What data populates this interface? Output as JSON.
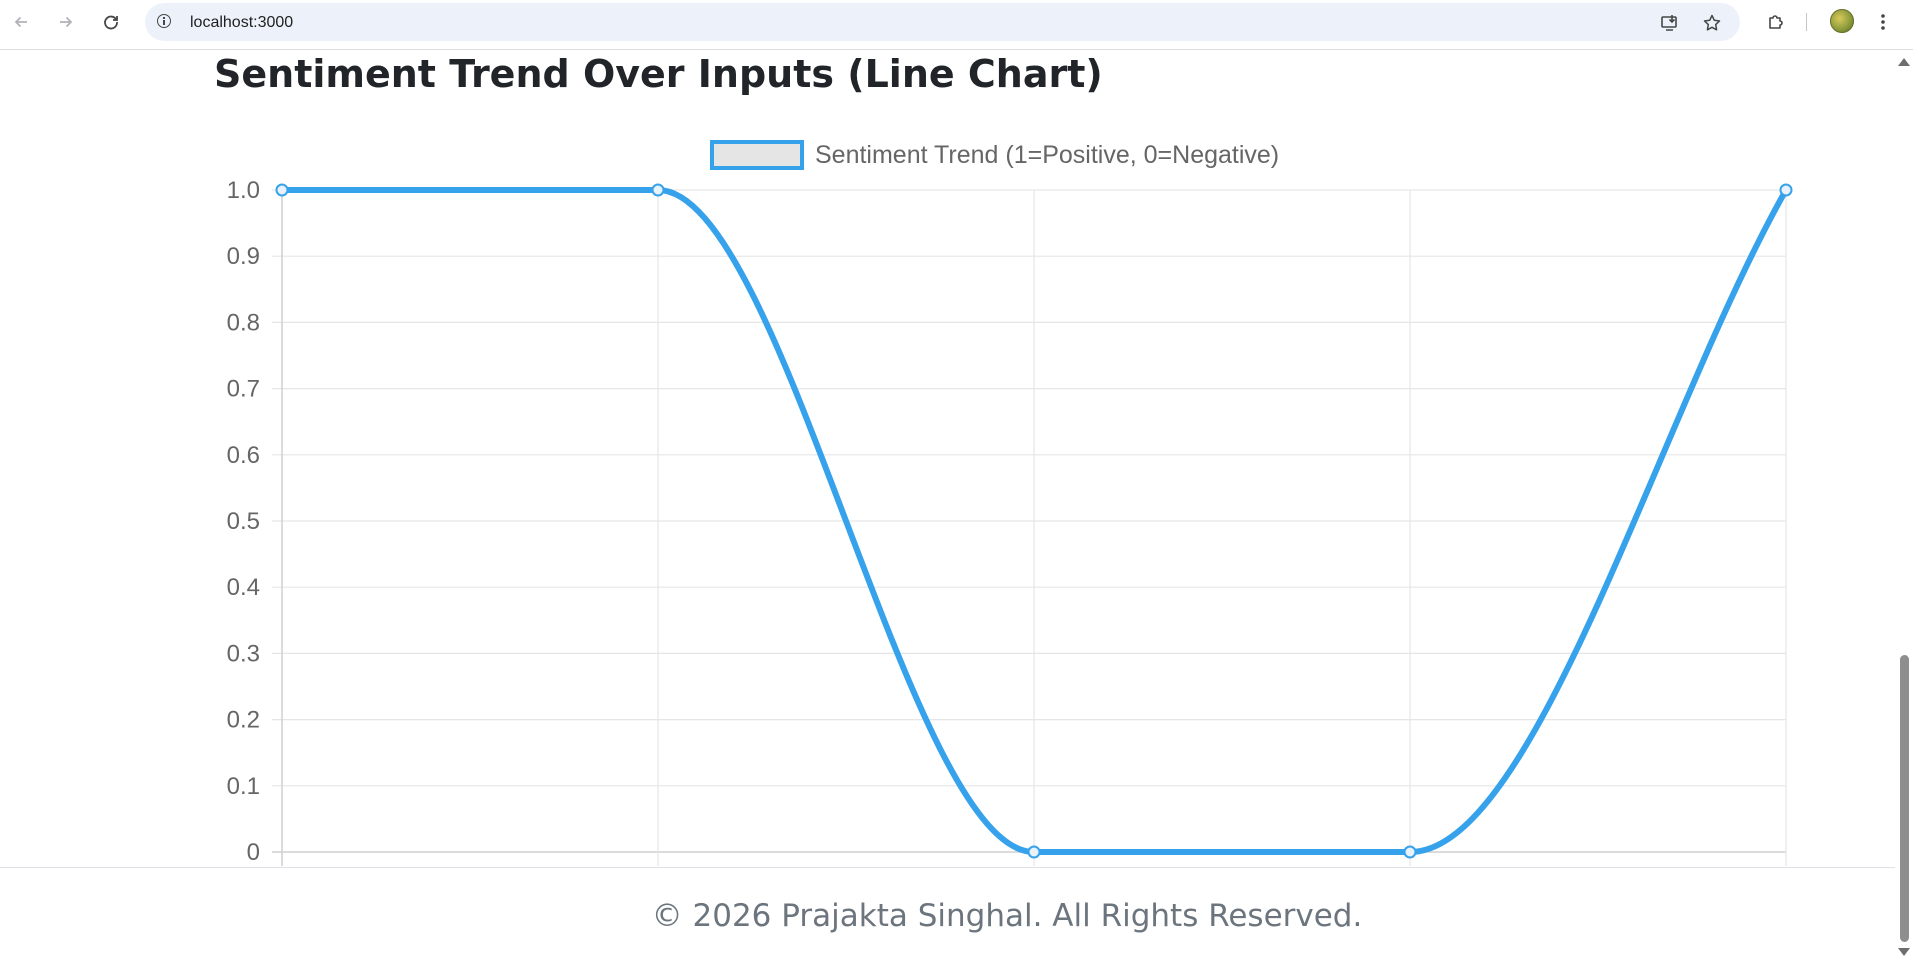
{
  "browser": {
    "url": "localhost:3000"
  },
  "page": {
    "title": "Sentiment Trend Over Inputs (Line Chart)",
    "footer": "© 2026 Prajakta Singhal. All Rights Reserved."
  },
  "chart_data": {
    "type": "line",
    "title": "",
    "xlabel": "",
    "ylabel": "",
    "x": [
      1,
      2,
      3,
      4,
      5
    ],
    "series": [
      {
        "name": "Sentiment Trend (1=Positive, 0=Negative)",
        "values": [
          1,
          1,
          0,
          0,
          1
        ],
        "color": "#36a2eb",
        "fill": "#e5e5e5"
      }
    ],
    "ylim": [
      0,
      1
    ],
    "yticks": [
      "0",
      "0.1",
      "0.2",
      "0.3",
      "0.4",
      "0.5",
      "0.6",
      "0.7",
      "0.8",
      "0.9",
      "1.0"
    ],
    "xticks_labeled": false,
    "grid": true,
    "legend_position": "top-center",
    "smooth": true
  },
  "icons": {
    "back": "arrow-left-icon",
    "forward": "arrow-right-icon",
    "reload": "reload-icon",
    "site_info": "info-icon",
    "install": "install-app-icon",
    "bookmark": "star-icon",
    "extensions": "puzzle-icon",
    "menu": "kebab-menu-icon"
  }
}
